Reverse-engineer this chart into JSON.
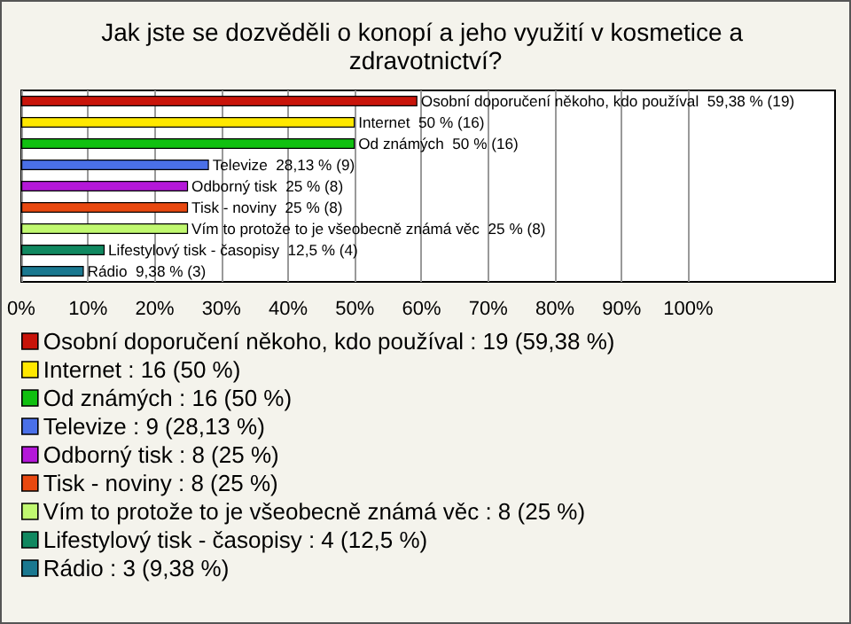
{
  "chart_data": {
    "type": "bar",
    "orientation": "horizontal",
    "stacked": true,
    "title": "Jak jste se dozvěděli o konopí a jeho využití v kosmetice a zdravotnictví?",
    "categories": [
      null,
      null,
      null,
      null,
      null,
      null,
      null,
      null,
      null
    ],
    "series": [
      {
        "name": "Osobní doporučení někoho, kdo používal : 19 (59,38 %)",
        "color": "#c8140a",
        "values": [
          59.38,
          null,
          null,
          null,
          null,
          null,
          null,
          null,
          null
        ],
        "value_labels": [
          "Osobní doporučení někoho, kdo používal  59,38 % (19)",
          null,
          null,
          null,
          null,
          null,
          null,
          null,
          null
        ]
      },
      {
        "name": "Internet : 16 (50 %)",
        "color": "#ffe800",
        "values": [
          null,
          50,
          null,
          null,
          null,
          null,
          null,
          null,
          null
        ],
        "value_labels": [
          null,
          "Internet  50 % (16)",
          null,
          null,
          null,
          null,
          null,
          null,
          null
        ]
      },
      {
        "name": "Od známých : 16 (50 %)",
        "color": "#10c010",
        "values": [
          null,
          null,
          50,
          null,
          null,
          null,
          null,
          null,
          null
        ],
        "value_labels": [
          null,
          null,
          "Od známých  50 % (16)",
          null,
          null,
          null,
          null,
          null,
          null
        ]
      },
      {
        "name": "Televize : 9 (28,13 %)",
        "color": "#4a70e8",
        "values": [
          null,
          null,
          null,
          28.13,
          null,
          null,
          null,
          null,
          null
        ],
        "value_labels": [
          null,
          null,
          null,
          "Televize  28,13 % (9)",
          null,
          null,
          null,
          null,
          null
        ]
      },
      {
        "name": "Odborný tisk : 8 (25 %)",
        "color": "#b418d8",
        "values": [
          null,
          null,
          null,
          null,
          25,
          null,
          null,
          null,
          null
        ],
        "value_labels": [
          null,
          null,
          null,
          null,
          "Odborný tisk  25 % (8)",
          null,
          null,
          null,
          null
        ]
      },
      {
        "name": "Tisk - noviny : 8 (25 %)",
        "color": "#e84810",
        "values": [
          null,
          null,
          null,
          null,
          null,
          25,
          null,
          null,
          null
        ],
        "value_labels": [
          null,
          null,
          null,
          null,
          null,
          "Tisk - noviny  25 % (8)",
          null,
          null,
          null
        ]
      },
      {
        "name": "Vím to protože to je všeobecně známá věc : 8 (25 %)",
        "color": "#c0f870",
        "values": [
          null,
          null,
          null,
          null,
          null,
          null,
          25,
          null,
          null
        ],
        "value_labels": [
          null,
          null,
          null,
          null,
          null,
          null,
          "Vím to protože to je všeobecně známá věc  25 % (8)",
          null,
          null
        ]
      },
      {
        "name": "Lifestylový tisk - časopisy : 4 (12,5 %)",
        "color": "#108860",
        "values": [
          null,
          null,
          null,
          null,
          null,
          null,
          null,
          12.5,
          null
        ],
        "value_labels": [
          null,
          null,
          null,
          null,
          null,
          null,
          null,
          "Lifestylový tisk - časopisy  12,5 % (4)",
          null
        ]
      },
      {
        "name": "Rádio : 3 (9,38 %)",
        "color": "#1a7890",
        "values": [
          null,
          null,
          null,
          null,
          null,
          null,
          null,
          null,
          9.38
        ],
        "value_labels": [
          null,
          null,
          null,
          null,
          null,
          null,
          null,
          null,
          "Rádio  9,38 % (3)"
        ]
      }
    ],
    "xlim": [
      0,
      122
    ],
    "xticks": [
      {
        "value": 0,
        "label": "0%"
      },
      {
        "value": 10,
        "label": "10%"
      },
      {
        "value": 20,
        "label": "20%"
      },
      {
        "value": 30,
        "label": "30%"
      },
      {
        "value": 40,
        "label": "40%"
      },
      {
        "value": 50,
        "label": "50%"
      },
      {
        "value": 60,
        "label": "60%"
      },
      {
        "value": 70,
        "label": "70%"
      },
      {
        "value": 80,
        "label": "80%"
      },
      {
        "value": 90,
        "label": "90%"
      },
      {
        "value": 100,
        "label": "100%"
      }
    ],
    "grid": "x",
    "legend": "bottom",
    "tick_labels": "x"
  }
}
